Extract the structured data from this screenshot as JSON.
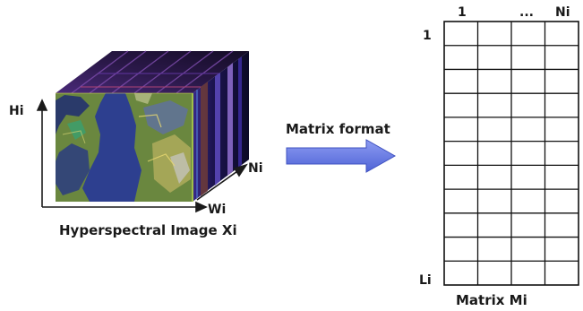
{
  "cube": {
    "axis_h": "Hi",
    "axis_w": "Wi",
    "axis_n": "Ni",
    "caption": "Hyperspectral Image Xi"
  },
  "arrow": {
    "label": "Matrix format",
    "color": "#6b7fe8"
  },
  "matrix": {
    "col_first": "1",
    "col_ellipsis": "...",
    "col_last": "Ni",
    "row_first": "1",
    "row_last": "Li",
    "caption": "Matrix Mi",
    "columns": 4,
    "rows": 11
  }
}
